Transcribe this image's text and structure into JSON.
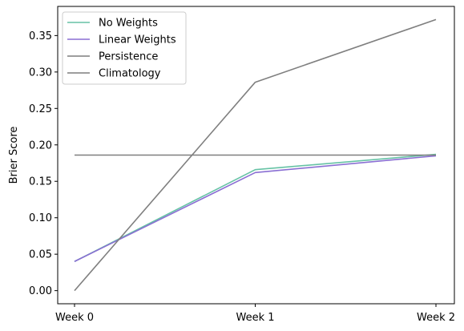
{
  "chart_data": {
    "type": "line",
    "title": "",
    "xlabel": "",
    "ylabel": "Brier Score",
    "categories": [
      "Week 0",
      "Week 1",
      "Week 2"
    ],
    "ylim": [
      -0.018,
      0.39
    ],
    "yticks": [
      0.0,
      0.05,
      0.1,
      0.15,
      0.2,
      0.25,
      0.3,
      0.35
    ],
    "ytick_labels": [
      "0.00",
      "0.05",
      "0.10",
      "0.15",
      "0.20",
      "0.25",
      "0.30",
      "0.35"
    ],
    "grid": false,
    "legend_position": "upper-left",
    "series": [
      {
        "name": "No Weights",
        "color": "#66c2a5",
        "values": [
          0.04,
          0.166,
          0.187
        ]
      },
      {
        "name": "Linear Weights",
        "color": "#8a6fd3",
        "values": [
          0.04,
          0.162,
          0.185
        ]
      },
      {
        "name": "Persistence",
        "color": "#7f7f7f",
        "values": [
          0.0,
          0.286,
          0.372
        ]
      },
      {
        "name": "Climatology",
        "color": "#7f7f7f",
        "values": [
          0.186,
          0.186,
          0.186
        ]
      }
    ]
  }
}
